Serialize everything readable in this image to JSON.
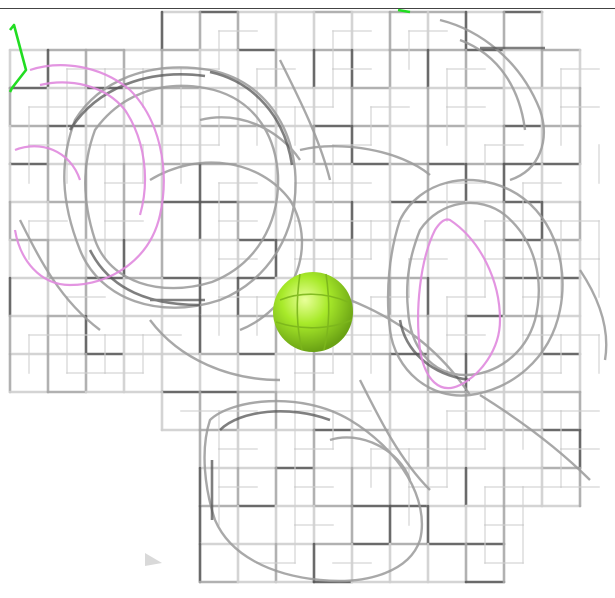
{
  "scene": {
    "description_free": true,
    "colors": {
      "background": "#ffffff",
      "mesh_light": "#cfcfcf",
      "mesh_mid": "#a8a8a8",
      "mesh_dark": "#5a5a5a",
      "density_pink": "#e38be0",
      "ligand_green": "#22dd22",
      "ion_sphere": "#9be22a"
    },
    "elements": {
      "mesh": "electron-density-mesh",
      "contour": "difference-density-contour",
      "ligand": "ligand-stick",
      "ion": "ion-sphere"
    }
  }
}
